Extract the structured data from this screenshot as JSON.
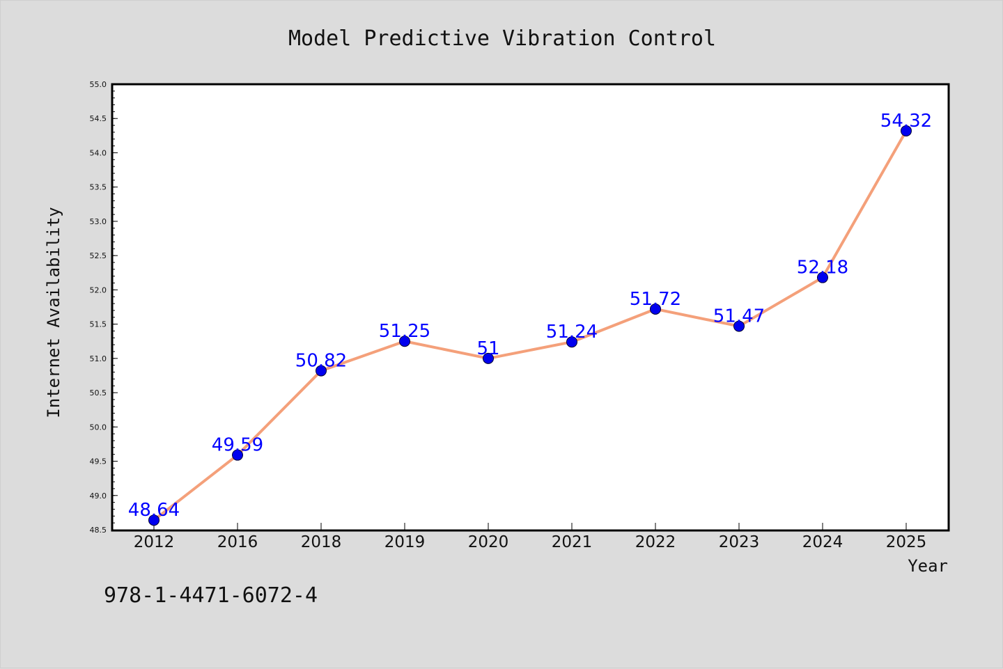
{
  "chart_data": {
    "type": "line",
    "title": "Model Predictive Vibration Control",
    "xlabel": "Year",
    "ylabel": "Internet Availability",
    "categories": [
      "2012",
      "2016",
      "2018",
      "2019",
      "2020",
      "2021",
      "2022",
      "2023",
      "2024",
      "2025"
    ],
    "series": [
      {
        "values": [
          48.64,
          49.59,
          50.82,
          51.25,
          51,
          51.24,
          51.72,
          51.47,
          52.18,
          54.32
        ],
        "data_labels": [
          "48.64",
          "49.59",
          "50.82",
          "51.25",
          "51",
          "51.24",
          "51.72",
          "51.47",
          "52.18",
          "54.32"
        ]
      }
    ],
    "ylim": [
      48.5,
      55.0
    ],
    "yticks": [
      "48.5",
      "49.0",
      "49.5",
      "50.0",
      "50.5",
      "51.0",
      "51.5",
      "52.0",
      "52.5",
      "53.0",
      "53.5",
      "54.0",
      "54.5",
      "55.0"
    ],
    "grid": false,
    "legend": "none",
    "colors": {
      "line": "#f4a07a",
      "marker": "#0000ee",
      "labels": "#0000ff",
      "background": "#dcdcdc",
      "plot_background": "#ffffff"
    }
  },
  "footer_text": "978-1-4471-6072-4"
}
